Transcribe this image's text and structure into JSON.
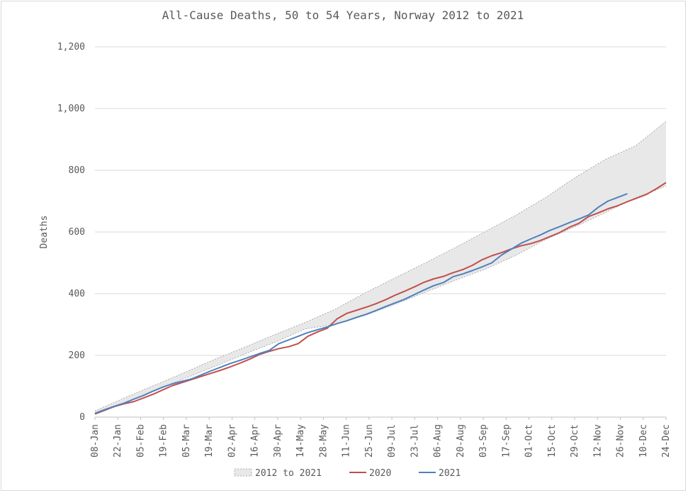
{
  "chart_data": {
    "type": "area",
    "title": "All-Cause Deaths, 50 to 54 Years, Norway 2012 to 2021",
    "ylabel": "Deaths",
    "xlabel": "",
    "ylim": [
      0,
      1200
    ],
    "yticks": [
      "0",
      "200",
      "400",
      "600",
      "800",
      "1,000",
      "1,200"
    ],
    "ytick_values": [
      0,
      200,
      400,
      600,
      800,
      1000,
      1200
    ],
    "grid": "horizontal",
    "legend_position": "bottom",
    "x_labels": [
      "08-Jan",
      "22-Jan",
      "05-Feb",
      "19-Feb",
      "05-Mar",
      "19-Mar",
      "02-Apr",
      "16-Apr",
      "30-Apr",
      "14-May",
      "28-May",
      "11-Jun",
      "25-Jun",
      "09-Jul",
      "23-Jul",
      "06-Aug",
      "20-Aug",
      "03-Sep",
      "17-Sep",
      "01-Oct",
      "15-Oct",
      "29-Oct",
      "12-Nov",
      "26-Nov",
      "10-Dec",
      "24-Dec"
    ],
    "band": {
      "name": "2012 to 2021",
      "color": "#e8e8e8",
      "upper": [
        20,
        63,
        104,
        145,
        188,
        227,
        268,
        307,
        350,
        403,
        452,
        500,
        550,
        602,
        654,
        712,
        778,
        836,
        880,
        958
      ],
      "lower": [
        14,
        48,
        86,
        126,
        165,
        205,
        243,
        286,
        300,
        330,
        366,
        405,
        444,
        480,
        524,
        576,
        618,
        664,
        712,
        748
      ]
    },
    "series": [
      {
        "name": "2020",
        "color": "#c0504d",
        "values": [
          10,
          22,
          34,
          43,
          50,
          62,
          74,
          88,
          102,
          112,
          122,
          132,
          142,
          152,
          163,
          175,
          188,
          203,
          213,
          222,
          228,
          238,
          262,
          276,
          288,
          318,
          336,
          346,
          356,
          367,
          380,
          395,
          408,
          422,
          437,
          448,
          456,
          468,
          478,
          492,
          510,
          523,
          533,
          545,
          555,
          562,
          572,
          585,
          598,
          615,
          628,
          650,
          662,
          675,
          685,
          698,
          710,
          722,
          740,
          760
        ]
      },
      {
        "name": "2021",
        "color": "#4f81bd",
        "values": [
          12,
          24,
          35,
          45,
          58,
          70,
          84,
          97,
          108,
          116,
          124,
          137,
          150,
          162,
          174,
          184,
          195,
          206,
          216,
          238,
          250,
          262,
          274,
          283,
          292,
          303,
          312,
          323,
          333,
          345,
          358,
          370,
          382,
          397,
          412,
          426,
          436,
          455,
          464,
          475,
          487,
          500,
          525,
          544,
          563,
          577,
          590,
          605,
          617,
          630,
          642,
          655,
          680,
          700,
          712,
          724
        ]
      }
    ]
  }
}
